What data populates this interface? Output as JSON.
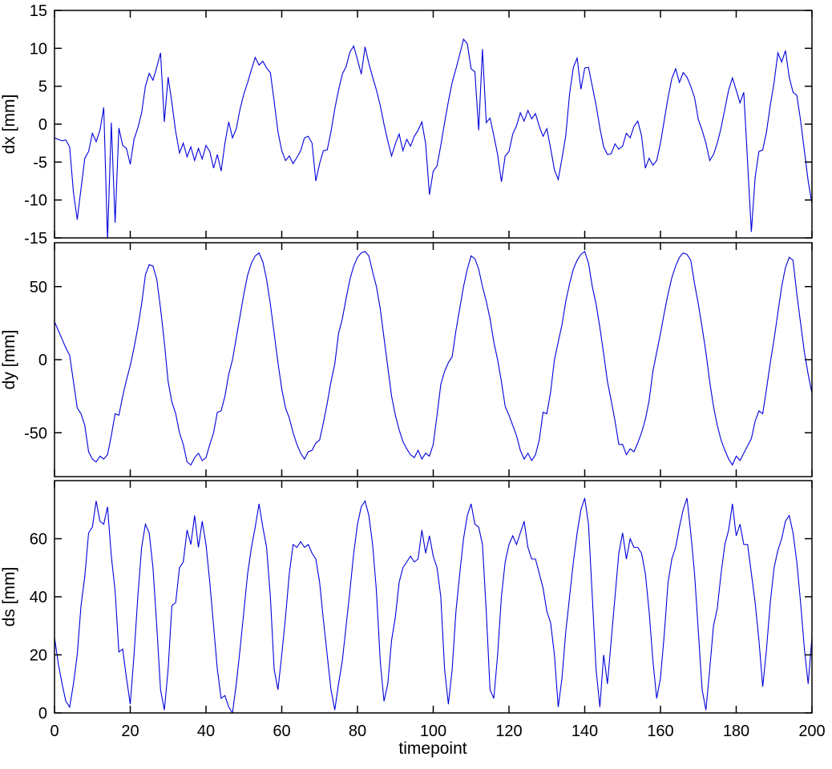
{
  "figure": {
    "background": "#ffffff",
    "line_color": "#0000dd",
    "axis_color": "#000000",
    "xlim": [
      0,
      200
    ],
    "x_tick_step": 20
  },
  "chart_data": [
    {
      "type": "line",
      "ylabel": "dx [mm]",
      "ylim": [
        -15,
        15
      ],
      "yticks": [
        -15,
        -10,
        -5,
        0,
        5,
        10,
        15
      ],
      "xlim": [
        0,
        200
      ],
      "grid": false,
      "values": [
        -1.8,
        -2.0,
        -2.2,
        -2.1,
        -3.0,
        -9.0,
        -12.6,
        -8.5,
        -4.5,
        -3.6,
        -1.2,
        -2.3,
        -0.8,
        2.2,
        -15.3,
        0.2,
        -13.0,
        -0.5,
        -2.8,
        -3.2,
        -5.3,
        -2.0,
        -0.5,
        1.5,
        5.0,
        6.7,
        5.8,
        7.5,
        9.4,
        0.3,
        6.2,
        2.8,
        -1.0,
        -3.8,
        -2.5,
        -4.3,
        -3.0,
        -4.8,
        -3.2,
        -4.6,
        -2.8,
        -3.6,
        -5.8,
        -4.0,
        -6.2,
        -2.5,
        0.3,
        -1.8,
        -0.6,
        2.0,
        4.0,
        5.5,
        7.2,
        8.8,
        7.8,
        8.3,
        7.4,
        6.8,
        3.0,
        -1.0,
        -3.5,
        -4.8,
        -4.2,
        -5.2,
        -4.4,
        -3.5,
        -1.8,
        -1.6,
        -2.5,
        -7.5,
        -5.2,
        -3.5,
        -3.4,
        -1.0,
        2.0,
        4.5,
        6.6,
        7.6,
        9.5,
        10.3,
        8.5,
        6.6,
        10.2,
        8.0,
        6.2,
        4.5,
        2.5,
        0.0,
        -2.2,
        -4.2,
        -2.6,
        -1.3,
        -3.5,
        -2.0,
        -2.9,
        -1.6,
        -0.8,
        0.3,
        -2.6,
        -9.3,
        -6.2,
        -5.5,
        -2.8,
        0.2,
        3.0,
        5.5,
        7.3,
        9.2,
        11.2,
        10.6,
        7.3,
        6.9,
        -0.8,
        9.9,
        0.2,
        0.8,
        -1.5,
        -4.0,
        -7.6,
        -4.2,
        -3.6,
        -1.3,
        -0.2,
        1.5,
        0.4,
        1.8,
        0.7,
        1.4,
        -0.3,
        -1.6,
        -0.6,
        -3.2,
        -6.0,
        -7.3,
        -4.5,
        -1.5,
        4.0,
        7.5,
        8.7,
        4.6,
        7.4,
        7.5,
        5.0,
        2.5,
        -0.5,
        -3.0,
        -4.0,
        -3.9,
        -2.6,
        -3.3,
        -2.9,
        -1.2,
        -1.8,
        -0.3,
        0.4,
        -1.5,
        -5.8,
        -4.5,
        -5.4,
        -4.8,
        -2.5,
        0.5,
        3.5,
        6.0,
        7.3,
        5.5,
        6.8,
        6.2,
        5.0,
        3.5,
        0.6,
        -0.8,
        -2.5,
        -4.8,
        -4.0,
        -2.5,
        -0.5,
        2.0,
        4.5,
        6.1,
        4.5,
        2.8,
        4.2,
        -5.0,
        -14.2,
        -7.0,
        -3.6,
        -3.4,
        -1.0,
        2.5,
        5.5,
        9.4,
        8.2,
        9.7,
        6.2,
        4.2,
        3.8,
        0.5,
        -3.5,
        -7.5,
        -10.5
      ]
    },
    {
      "type": "line",
      "ylabel": "dy [mm]",
      "ylim": [
        -80,
        80
      ],
      "yticks": [
        -50,
        0,
        50
      ],
      "xlim": [
        0,
        200
      ],
      "grid": false,
      "values": [
        26,
        20,
        14,
        8,
        3,
        -15,
        -33,
        -37,
        -45,
        -63,
        -68,
        -70,
        -66,
        -68,
        -65,
        -52,
        -37,
        -38,
        -25,
        -14,
        -4,
        8,
        22,
        38,
        58,
        65,
        64,
        55,
        35,
        12,
        -15,
        -29,
        -37,
        -50,
        -58,
        -70,
        -72,
        -67,
        -64,
        -69,
        -67,
        -58,
        -50,
        -36,
        -35,
        -25,
        -10,
        0,
        15,
        30,
        45,
        58,
        66,
        71,
        73,
        67,
        55,
        38,
        18,
        -2,
        -20,
        -33,
        -40,
        -50,
        -58,
        -64,
        -68,
        -63,
        -62,
        -57,
        -55,
        -43,
        -30,
        -15,
        -3,
        18,
        28,
        42,
        55,
        64,
        70,
        73,
        74,
        71,
        60,
        50,
        35,
        15,
        -5,
        -25,
        -38,
        -48,
        -56,
        -61,
        -65,
        -67,
        -62,
        -68,
        -64,
        -66,
        -58,
        -38,
        -17,
        -8,
        -2,
        2,
        20,
        35,
        50,
        62,
        71,
        69,
        62,
        50,
        40,
        28,
        12,
        0,
        -15,
        -32,
        -38,
        -45,
        -52,
        -62,
        -68,
        -64,
        -69,
        -65,
        -55,
        -36,
        -37,
        -22,
        0,
        12,
        24,
        40,
        52,
        62,
        68,
        72,
        74,
        66,
        50,
        38,
        22,
        4,
        -15,
        -28,
        -42,
        -58,
        -58,
        -65,
        -61,
        -63,
        -57,
        -50,
        -41,
        -28,
        -8,
        5,
        18,
        32,
        45,
        56,
        64,
        70,
        73,
        72,
        68,
        52,
        38,
        22,
        5,
        -15,
        -32,
        -45,
        -55,
        -62,
        -68,
        -72,
        -66,
        -69,
        -64,
        -59,
        -54,
        -42,
        -35,
        -37,
        -20,
        -2,
        14,
        32,
        50,
        63,
        70,
        68,
        45,
        25,
        5,
        -10,
        -23
      ]
    },
    {
      "type": "line",
      "ylabel": "ds [mm]",
      "xlabel": "timepoint",
      "ylim": [
        0,
        80
      ],
      "yticks": [
        0,
        20,
        40,
        60
      ],
      "xticks": [
        0,
        20,
        40,
        60,
        80,
        100,
        120,
        140,
        160,
        180,
        200
      ],
      "xlim": [
        0,
        200
      ],
      "grid": false,
      "values": [
        26,
        17,
        10,
        4,
        2,
        10,
        20,
        37,
        47,
        62,
        64,
        73,
        66,
        65,
        71,
        54,
        42,
        21,
        22,
        12,
        3,
        20,
        40,
        57,
        65,
        62,
        50,
        30,
        8,
        1,
        15,
        37,
        38,
        50,
        52,
        63,
        58,
        68,
        57,
        66,
        58,
        45,
        30,
        15,
        5,
        6,
        2,
        0,
        10,
        22,
        35,
        48,
        57,
        64,
        72,
        64,
        57,
        40,
        15,
        8,
        20,
        33,
        48,
        58,
        57,
        59,
        57,
        58,
        55,
        53,
        45,
        32,
        20,
        8,
        1,
        10,
        18,
        30,
        42,
        55,
        65,
        71,
        73,
        68,
        58,
        42,
        18,
        4,
        10,
        25,
        33,
        45,
        50,
        52,
        54,
        52,
        53,
        63,
        55,
        61,
        54,
        50,
        40,
        15,
        3,
        15,
        35,
        48,
        60,
        68,
        72,
        65,
        64,
        58,
        35,
        8,
        5,
        20,
        40,
        52,
        58,
        61,
        58,
        62,
        66,
        57,
        53,
        53,
        48,
        43,
        35,
        31,
        20,
        2,
        12,
        28,
        40,
        52,
        62,
        70,
        74,
        65,
        40,
        15,
        2,
        20,
        10,
        25,
        40,
        55,
        62,
        53,
        60,
        57,
        57,
        55,
        48,
        35,
        18,
        5,
        12,
        27,
        45,
        53,
        57,
        64,
        70,
        74,
        62,
        48,
        28,
        8,
        1,
        15,
        30,
        36,
        48,
        58,
        63,
        72,
        61,
        65,
        58,
        58,
        48,
        38,
        25,
        9,
        22,
        38,
        50,
        56,
        60,
        66,
        68,
        62,
        52,
        38,
        22,
        10,
        26
      ]
    }
  ]
}
